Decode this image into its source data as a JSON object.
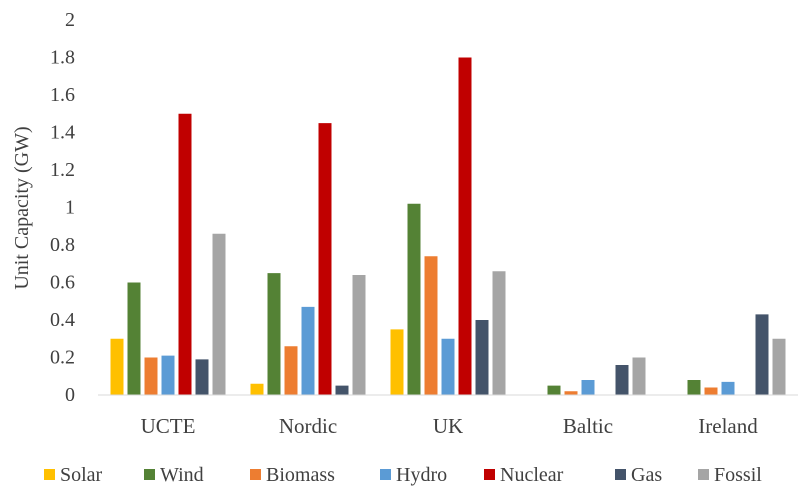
{
  "chart_data": {
    "type": "bar",
    "title": "",
    "xlabel": "",
    "ylabel": "Unit Capacity (GW)",
    "ylim": [
      0,
      2
    ],
    "yticks": [
      "0",
      "0.2",
      "0.4",
      "0.6",
      "0.8",
      "1",
      "1.2",
      "1.4",
      "1.6",
      "1.8",
      "2"
    ],
    "categories": [
      "UCTE",
      "Nordic",
      "UK",
      "Baltic",
      "Ireland"
    ],
    "grid": false,
    "legend": "bottom",
    "series": [
      {
        "name": "Solar",
        "color": "#FFC000",
        "values": [
          0.3,
          0.06,
          0.35,
          0,
          0
        ]
      },
      {
        "name": "Wind",
        "color": "#548235",
        "values": [
          0.6,
          0.65,
          1.02,
          0.05,
          0.08
        ]
      },
      {
        "name": "Biomass",
        "color": "#ED7D31",
        "values": [
          0.2,
          0.26,
          0.74,
          0.02,
          0.04
        ]
      },
      {
        "name": "Hydro",
        "color": "#5B9BD5",
        "values": [
          0.21,
          0.47,
          0.3,
          0.08,
          0.07
        ]
      },
      {
        "name": "Nuclear",
        "color": "#C00000",
        "values": [
          1.5,
          1.45,
          1.8,
          0,
          0
        ]
      },
      {
        "name": "Gas",
        "color": "#44546A",
        "values": [
          0.19,
          0.05,
          0.4,
          0.16,
          0.43
        ]
      },
      {
        "name": "Fossil",
        "color": "#A5A5A5",
        "values": [
          0.86,
          0.64,
          0.66,
          0.2,
          0.3
        ]
      }
    ]
  }
}
